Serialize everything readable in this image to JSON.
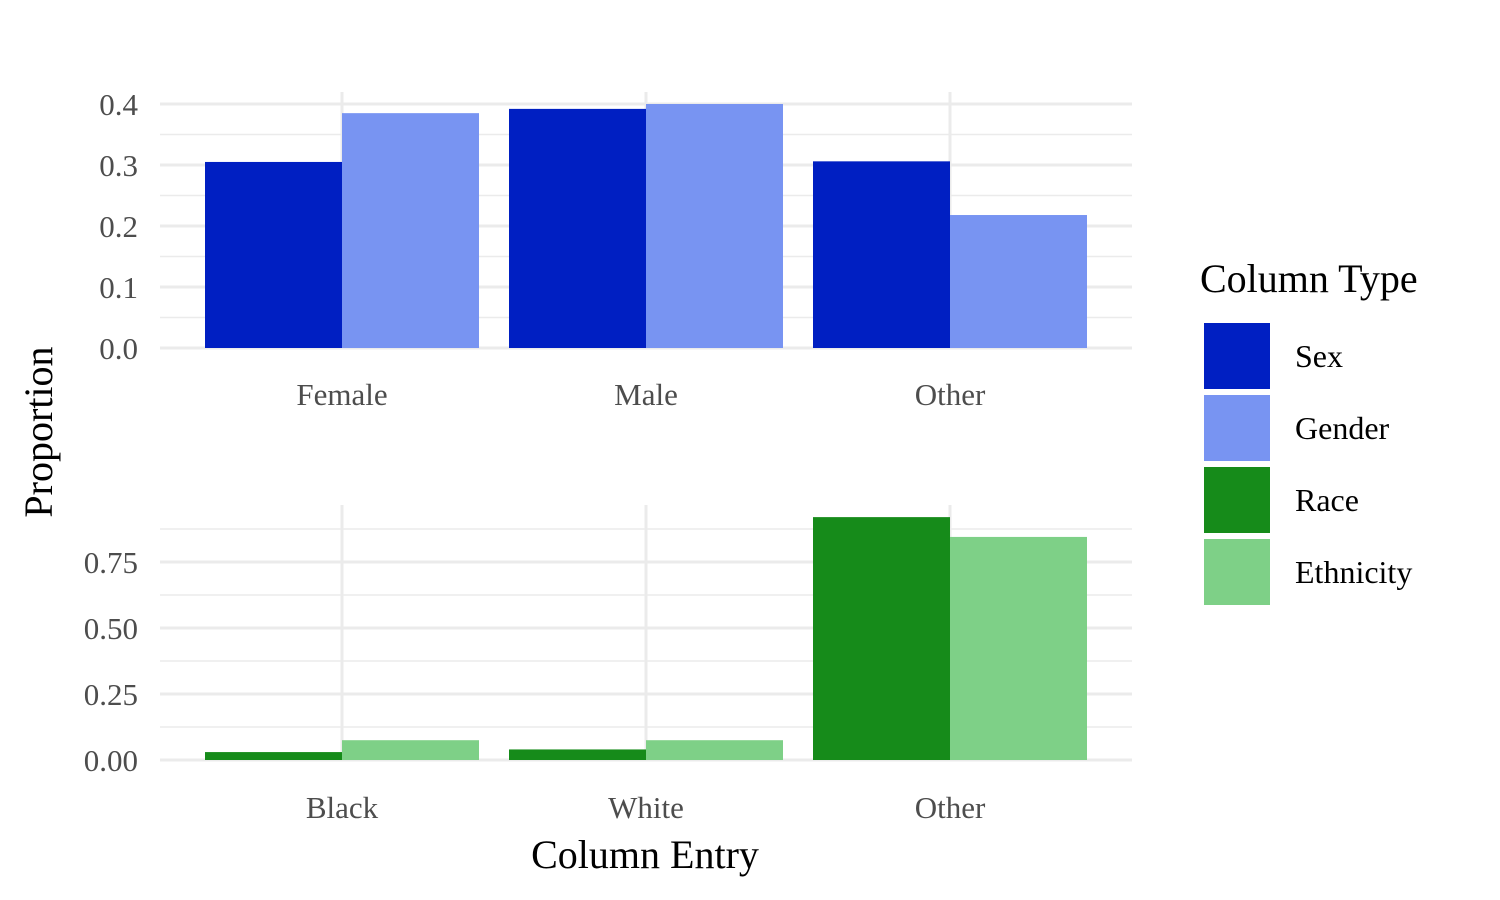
{
  "chart_data": {
    "type": "bar",
    "xlabel": "Column Entry",
    "ylabel": "Proportion",
    "legend": {
      "title": "Column Type",
      "placement": "right",
      "entries": [
        {
          "name": "Sex",
          "color": "#001FC2"
        },
        {
          "name": "Gender",
          "color": "#7894F2"
        },
        {
          "name": "Race",
          "color": "#168B1A"
        },
        {
          "name": "Ethnicity",
          "color": "#7ED087"
        }
      ]
    },
    "grid": true,
    "panels": [
      {
        "categories": [
          "Female",
          "Male",
          "Other"
        ],
        "ylim": [
          0,
          0.4
        ],
        "yticks": [
          "0.0",
          "0.1",
          "0.2",
          "0.3",
          "0.4"
        ],
        "series": [
          {
            "name": "Sex",
            "color": "#001FC2",
            "values": [
              0.305,
              0.392,
              0.306
            ]
          },
          {
            "name": "Gender",
            "color": "#7894F2",
            "values": [
              0.385,
              0.4,
              0.218
            ]
          }
        ]
      },
      {
        "categories": [
          "Black",
          "White",
          "Other"
        ],
        "ylim": [
          0,
          0.92
        ],
        "yticks": [
          "0.00",
          "0.25",
          "0.50",
          "0.75"
        ],
        "series": [
          {
            "name": "Race",
            "color": "#168B1A",
            "values": [
              0.03,
              0.04,
              0.92
            ]
          },
          {
            "name": "Ethnicity",
            "color": "#7ED087",
            "values": [
              0.075,
              0.075,
              0.845
            ]
          }
        ]
      }
    ]
  }
}
